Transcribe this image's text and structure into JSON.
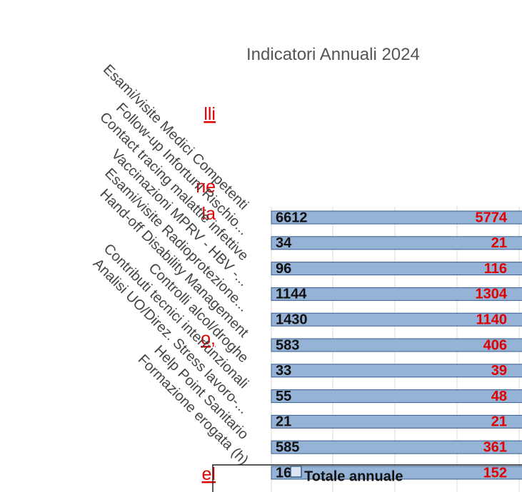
{
  "title": "Indicatori Annuali 2024",
  "side_text": [
    "lli",
    "ne",
    "la",
    "o,",
    "el"
  ],
  "rows": [
    {
      "label": "Esami/visite Medici Competenti",
      "left": 6612,
      "right": 5774
    },
    {
      "label": "Follow-up Infortuni Rischio...",
      "left": 34,
      "right": 21
    },
    {
      "label": "Contact tracing malattie infettive",
      "left": 96,
      "right": 116
    },
    {
      "label": "Vaccinazioni MPRV - HBV -...",
      "left": 1144,
      "right": 1304
    },
    {
      "label": "Esami/visite Radioprotezione...",
      "left": 1430,
      "right": 1140
    },
    {
      "label": "Hand-off Disability Management",
      "left": 583,
      "right": 406
    },
    {
      "label": "Controlli alcol/droghe",
      "left": 33,
      "right": 39
    },
    {
      "label": "Contributi tecnici interfunzionali",
      "left": 55,
      "right": 48
    },
    {
      "label": "Analisi UO/Direz. Stress lavoro-...",
      "left": 21,
      "right": 21
    },
    {
      "label": "Help Point Sanitario",
      "left": 585,
      "right": 361
    },
    {
      "label": "Formazione erogata (h)",
      "left": 165,
      "right": 152
    }
  ],
  "legend": "Totale annuale"
}
